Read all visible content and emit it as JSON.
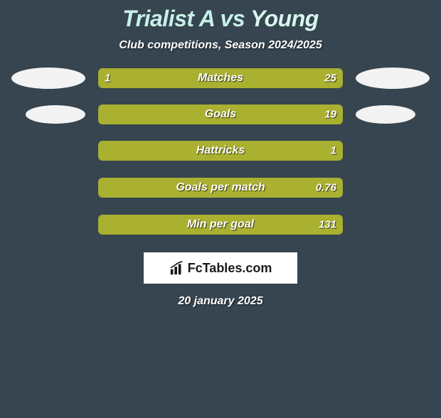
{
  "title": {
    "player_a": "Trialist A",
    "vs": "vs",
    "player_b": "Young",
    "color_a": "#c8f0e8",
    "color_b": "#d8f5ef"
  },
  "subtitle": "Club competitions, Season 2024/2025",
  "colors": {
    "background": "#36454f",
    "bar_color_a": "#aab030",
    "bar_color_b": "#aab030",
    "bar_border": "#aab030",
    "ellipse_a": "#f3f3f3",
    "ellipse_b": "#f3f3f3",
    "text": "#ffffff"
  },
  "stats": [
    {
      "label": "Matches",
      "value_a": "1",
      "value_b": "25",
      "pct_a": 3.8,
      "pct_b": 96.2,
      "show_ellipses": true
    },
    {
      "label": "Goals",
      "value_a": "",
      "value_b": "19",
      "pct_a": 0,
      "pct_b": 100,
      "show_ellipses": true,
      "ellipse_narrow": true
    },
    {
      "label": "Hattricks",
      "value_a": "",
      "value_b": "1",
      "pct_a": 0,
      "pct_b": 100,
      "show_ellipses": false
    },
    {
      "label": "Goals per match",
      "value_a": "",
      "value_b": "0.76",
      "pct_a": 0,
      "pct_b": 100,
      "show_ellipses": false
    },
    {
      "label": "Min per goal",
      "value_a": "",
      "value_b": "131",
      "pct_a": 0,
      "pct_b": 100,
      "show_ellipses": false
    }
  ],
  "logo": {
    "text": "FcTables.com",
    "bg": "#ffffff",
    "text_color": "#1a1a1a"
  },
  "date": "20 january 2025"
}
